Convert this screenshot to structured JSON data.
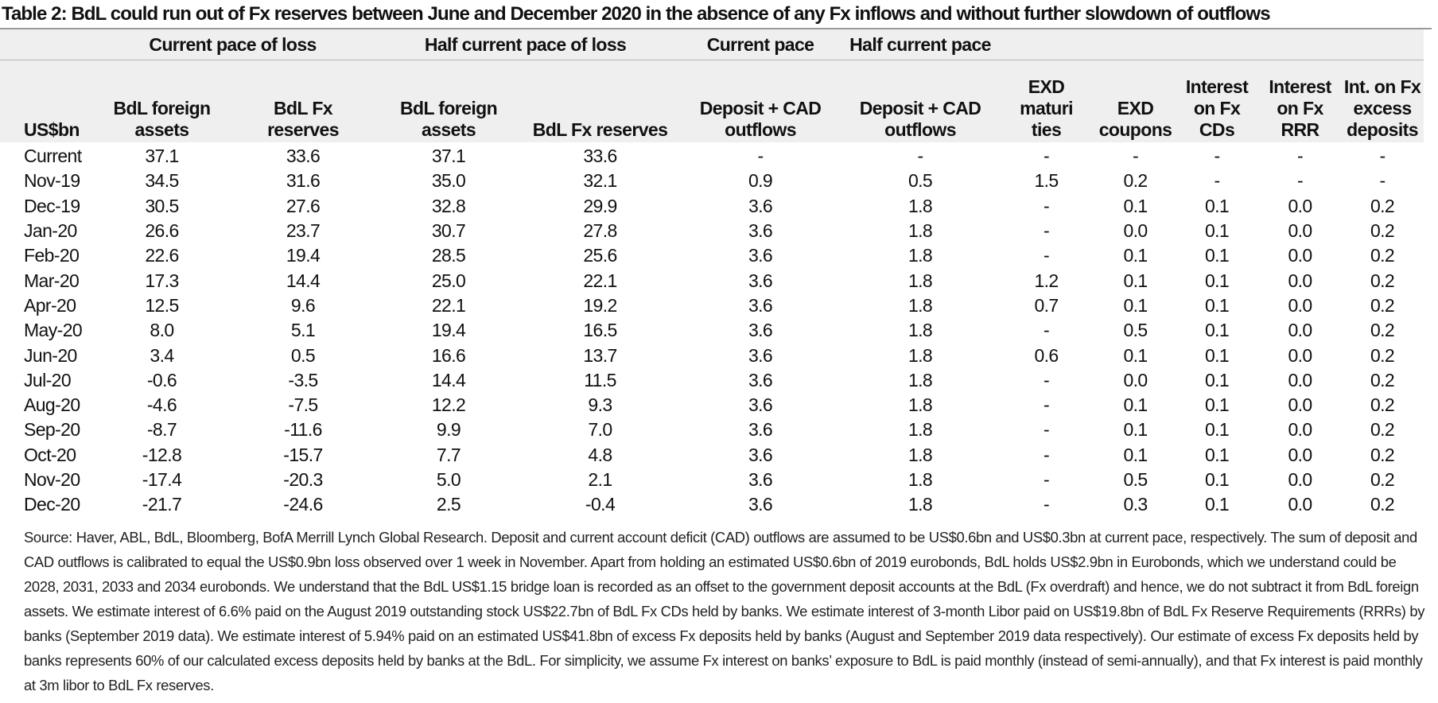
{
  "title": "Table 2: BdL could run out of Fx reserves between June and December 2020 in the absence of any Fx inflows and without further slowdown of outflows",
  "group_headers": [
    "Current pace of loss",
    "Half current pace of loss",
    "Current pace",
    "Half current pace"
  ],
  "columns": [
    "US$bn",
    "BdL foreign assets",
    "BdL Fx reserves",
    "BdL foreign assets",
    "BdL Fx reserves",
    "Deposit + CAD outflows",
    "Deposit + CAD outflows",
    "EXD maturi ties",
    "EXD coupons",
    "Interest on Fx CDs",
    "Interest on Fx RRR",
    "Int. on Fx excess deposits"
  ],
  "rows": [
    [
      "Current",
      "37.1",
      "33.6",
      "37.1",
      "33.6",
      "-",
      "-",
      "-",
      "-",
      "-",
      "-",
      "-"
    ],
    [
      "Nov-19",
      "34.5",
      "31.6",
      "35.0",
      "32.1",
      "0.9",
      "0.5",
      "1.5",
      "0.2",
      "-",
      "-",
      "-"
    ],
    [
      "Dec-19",
      "30.5",
      "27.6",
      "32.8",
      "29.9",
      "3.6",
      "1.8",
      "-",
      "0.1",
      "0.1",
      "0.0",
      "0.2"
    ],
    [
      "Jan-20",
      "26.6",
      "23.7",
      "30.7",
      "27.8",
      "3.6",
      "1.8",
      "-",
      "0.0",
      "0.1",
      "0.0",
      "0.2"
    ],
    [
      "Feb-20",
      "22.6",
      "19.4",
      "28.5",
      "25.6",
      "3.6",
      "1.8",
      "-",
      "0.1",
      "0.1",
      "0.0",
      "0.2"
    ],
    [
      "Mar-20",
      "17.3",
      "14.4",
      "25.0",
      "22.1",
      "3.6",
      "1.8",
      "1.2",
      "0.1",
      "0.1",
      "0.0",
      "0.2"
    ],
    [
      "Apr-20",
      "12.5",
      "9.6",
      "22.1",
      "19.2",
      "3.6",
      "1.8",
      "0.7",
      "0.1",
      "0.1",
      "0.0",
      "0.2"
    ],
    [
      "May-20",
      "8.0",
      "5.1",
      "19.4",
      "16.5",
      "3.6",
      "1.8",
      "-",
      "0.5",
      "0.1",
      "0.0",
      "0.2"
    ],
    [
      "Jun-20",
      "3.4",
      "0.5",
      "16.6",
      "13.7",
      "3.6",
      "1.8",
      "0.6",
      "0.1",
      "0.1",
      "0.0",
      "0.2"
    ],
    [
      "Jul-20",
      "-0.6",
      "-3.5",
      "14.4",
      "11.5",
      "3.6",
      "1.8",
      "-",
      "0.0",
      "0.1",
      "0.0",
      "0.2"
    ],
    [
      "Aug-20",
      "-4.6",
      "-7.5",
      "12.2",
      "9.3",
      "3.6",
      "1.8",
      "-",
      "0.1",
      "0.1",
      "0.0",
      "0.2"
    ],
    [
      "Sep-20",
      "-8.7",
      "-11.6",
      "9.9",
      "7.0",
      "3.6",
      "1.8",
      "-",
      "0.1",
      "0.1",
      "0.0",
      "0.2"
    ],
    [
      "Oct-20",
      "-12.8",
      "-15.7",
      "7.7",
      "4.8",
      "3.6",
      "1.8",
      "-",
      "0.1",
      "0.1",
      "0.0",
      "0.2"
    ],
    [
      "Nov-20",
      "-17.4",
      "-20.3",
      "5.0",
      "2.1",
      "3.6",
      "1.8",
      "-",
      "0.5",
      "0.1",
      "0.0",
      "0.2"
    ],
    [
      "Dec-20",
      "-21.7",
      "-24.6",
      "2.5",
      "-0.4",
      "3.6",
      "1.8",
      "-",
      "0.3",
      "0.1",
      "0.0",
      "0.2"
    ]
  ],
  "source_note": "Source: Haver, ABL, BdL, Bloomberg, BofA Merrill Lynch Global Research. Deposit and current account deficit (CAD) outflows are assumed to be US$0.6bn and US$0.3bn at current pace, respectively. The sum of deposit and CAD outflows is calibrated to equal the US$0.9bn loss observed over 1 week in November. Apart from holding an estimated US$0.6bn of 2019 eurobonds, BdL holds US$2.9bn in Eurobonds, which we understand could be 2028, 2031, 2033 and 2034 eurobonds. We understand that the BdL US$1.15 bridge loan is recorded as an offset to the government deposit accounts at the BdL (Fx overdraft) and hence, we do not subtract it from BdL foreign assets.  We estimate interest of 6.6% paid on the August 2019 outstanding stock US$22.7bn of BdL Fx CDs held by banks. We estimate interest of 3-month Libor paid on US$19.8bn of BdL Fx Reserve Requirements (RRRs) by banks (September 2019 data). We estimate interest of 5.94% paid on an estimated US$41.8bn of excess Fx deposits held by banks (August and September 2019 data respectively). Our estimate of excess Fx deposits held by banks represents 60% of our calculated excess deposits held by banks at the BdL. For simplicity, we assume Fx interest on banks’ exposure to BdL is paid monthly (instead of semi-annually), and that Fx interest is paid monthly at 3m libor to BdL Fx reserves."
}
